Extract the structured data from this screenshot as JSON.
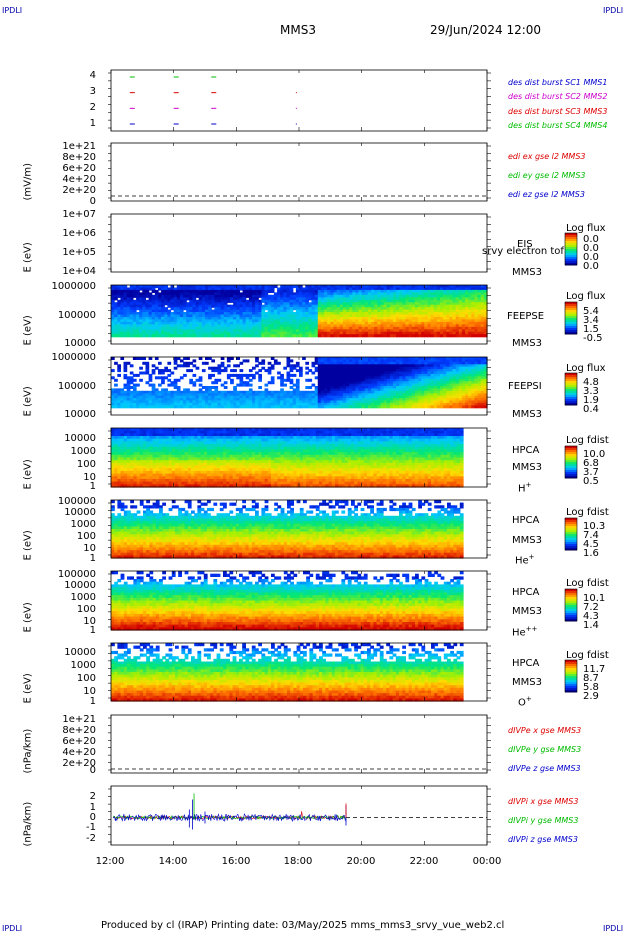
{
  "header": {
    "corner_left_top": "IPDLI",
    "corner_right_top": "IPDLI",
    "spacecraft": "MMS3",
    "datetime": "29/Jun/2024 12:00"
  },
  "footer": {
    "text": "Produced by cl (IRAP)   Printing date: 03/May/2025   mms_mms3_srvy_vue_web2.cl",
    "corner_left_bottom": "IPDLI",
    "corner_right_bottom": "IPDLI"
  },
  "colors": {
    "mms1": "#0000cc",
    "mms2": "#cc00cc",
    "mms3": "#dd0000",
    "mms4": "#00bb00",
    "x": "#dd0000",
    "y": "#00bb00",
    "z": "#0000cc"
  },
  "chart_data": [
    {
      "id": "burst",
      "type": "scatter",
      "yticks": [
        "1",
        "2",
        "3",
        "4"
      ],
      "legend": [
        "des dist burst SC1 MMS1",
        "des dist burst SC2 MMS2",
        "des dist burst SC3 MMS3",
        "des dist burst SC4 MMS4"
      ],
      "series": [
        {
          "name": "des dist burst SC1 MMS1",
          "y": 1,
          "x_hours": [
            12.6,
            14.0,
            15.2,
            17.9
          ]
        },
        {
          "name": "des dist burst SC2 MMS2",
          "y": 2,
          "x_hours": [
            12.6,
            14.0,
            15.2,
            17.9
          ]
        },
        {
          "name": "des dist burst SC3 MMS3",
          "y": 3,
          "x_hours": [
            12.6,
            14.0,
            15.2,
            17.9
          ]
        },
        {
          "name": "des dist burst SC4 MMS4",
          "y": 4,
          "x_hours": [
            12.6,
            14.0,
            15.2
          ]
        }
      ]
    },
    {
      "id": "edi",
      "type": "line",
      "ylabel": "(mV/m)",
      "yticks": [
        "1e+21",
        "8e+20",
        "6e+20",
        "4e+20",
        "2e+20",
        "0"
      ],
      "legend": [
        "edi ex gse l2 MMS3",
        "edi ey gse l2 MMS3",
        "edi ez gse l2 MMS3"
      ]
    },
    {
      "id": "eis",
      "type": "heatmap",
      "ylabel": "E (eV)",
      "yticks": [
        "1e+07",
        "1e+06",
        "1e+05",
        "1e+04"
      ],
      "instrument": "EIS",
      "overlap_text": "srvy electron tof",
      "sc": "MMS3",
      "cbar_title": "Log flux",
      "cbar_ticks": [
        "0.0",
        "0.0",
        "0.0",
        "0.0"
      ]
    },
    {
      "id": "feepse",
      "type": "heatmap",
      "ylabel": "E (eV)",
      "yticks": [
        "1000000",
        "100000",
        "10000"
      ],
      "instrument": "FEEPSE",
      "sc": "MMS3",
      "cbar_title": "Log flux",
      "cbar_ticks": [
        "5.4",
        "3.4",
        "1.5",
        "-0.5"
      ]
    },
    {
      "id": "feepsi",
      "type": "heatmap",
      "ylabel": "E (eV)",
      "yticks": [
        "1000000",
        "100000",
        "10000"
      ],
      "instrument": "FEEPSI",
      "sc": "MMS3",
      "cbar_title": "Log flux",
      "cbar_ticks": [
        "4.8",
        "3.3",
        "1.9",
        "0.4"
      ]
    },
    {
      "id": "hpca_h",
      "type": "heatmap",
      "ylabel": "E (eV)",
      "yticks": [
        "10000",
        "1000",
        "100",
        "10",
        "1"
      ],
      "instrument": "HPCA",
      "sc": "MMS3",
      "species": "H",
      "species_sup": "+",
      "cbar_title": "Log fdist",
      "cbar_ticks": [
        "10.0",
        "6.8",
        "3.7",
        "0.5"
      ]
    },
    {
      "id": "hpca_he",
      "type": "heatmap",
      "ylabel": "E (eV)",
      "yticks": [
        "100000",
        "10000",
        "1000",
        "100",
        "10",
        "1"
      ],
      "instrument": "HPCA",
      "sc": "MMS3",
      "species": "He",
      "species_sup": "+",
      "cbar_title": "Log fdist",
      "cbar_ticks": [
        "10.3",
        "7.4",
        "4.5",
        "1.6"
      ]
    },
    {
      "id": "hpca_he2",
      "type": "heatmap",
      "ylabel": "E (eV)",
      "yticks": [
        "100000",
        "10000",
        "1000",
        "100",
        "10",
        "1"
      ],
      "instrument": "HPCA",
      "sc": "MMS3",
      "species": "He",
      "species_sup": "++",
      "cbar_title": "Log fdist",
      "cbar_ticks": [
        "10.1",
        "7.2",
        "4.3",
        "1.4"
      ]
    },
    {
      "id": "hpca_o",
      "type": "heatmap",
      "ylabel": "E (eV)",
      "yticks": [
        "10000",
        "1000",
        "100",
        "10",
        "1"
      ],
      "instrument": "HPCA",
      "sc": "MMS3",
      "species": "O",
      "species_sup": "+",
      "cbar_title": "Log fdist",
      "cbar_ticks": [
        "11.7",
        "8.7",
        "5.8",
        "2.9"
      ]
    },
    {
      "id": "divpe",
      "type": "line",
      "ylabel": "(nPa/km)",
      "yticks": [
        "1e+21",
        "8e+20",
        "6e+20",
        "4e+20",
        "2e+20",
        "0"
      ],
      "legend": [
        "dIVPe x gse MMS3",
        "dIVPe y gse MMS3",
        "dIVPe z gse MMS3"
      ]
    },
    {
      "id": "divpi",
      "type": "line",
      "ylabel": "(nPa/km)",
      "yticks": [
        "2",
        "1",
        "0",
        "-1",
        "-2"
      ],
      "ylim": [
        -3,
        3
      ],
      "legend": [
        "dIVPi x gse MMS3",
        "dIVPi y gse MMS3",
        "dIVPi z gse MMS3"
      ],
      "data_end_hour": 19.5
    }
  ],
  "xaxis": {
    "ticks": [
      "12:00",
      "14:00",
      "16:00",
      "18:00",
      "20:00",
      "22:00",
      "00:00"
    ],
    "range_hours": [
      12,
      24
    ]
  }
}
